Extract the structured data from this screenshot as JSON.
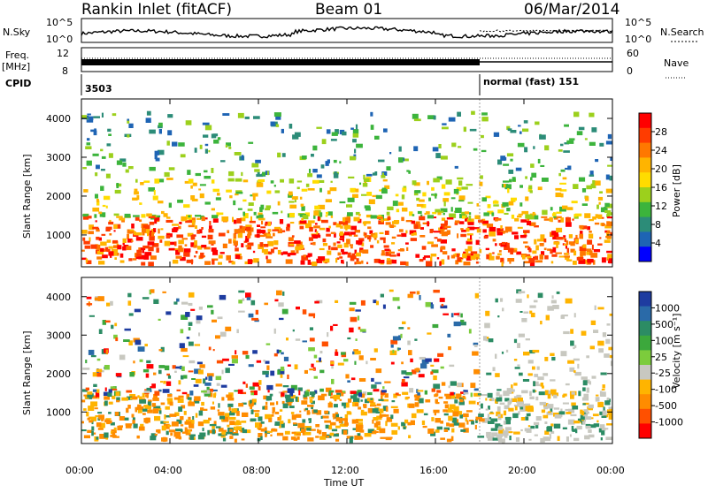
{
  "header": {
    "station": "Rankin Inlet (fitACF)",
    "beam": "Beam 01",
    "date": "06/Mar/2014"
  },
  "top_panels": {
    "nsky": {
      "label": "N.Sky",
      "ticks": [
        "10^5",
        "10^0"
      ]
    },
    "nsearch": {
      "label": "N.Search",
      "ticks": [
        "10^5",
        "10^0"
      ]
    },
    "freq": {
      "label_line1": "Freq.",
      "label_line2": "[MHz]",
      "ticks": [
        "12",
        "8"
      ]
    },
    "nave": {
      "label": "Nave",
      "ticks": [
        "60",
        "0"
      ]
    },
    "cpid": {
      "label": "CPID",
      "segments": [
        {
          "text": "3503"
        },
        {
          "text": "normal (fast) 151"
        }
      ]
    }
  },
  "power_panel": {
    "ylabel": "Slant Range [km]",
    "yticks": [
      "4000",
      "3000",
      "2000",
      "1000"
    ],
    "colorbar": {
      "label": "Power [dB]",
      "ticks": [
        "28",
        "24",
        "20",
        "16",
        "12",
        "8",
        "4"
      ],
      "colors": [
        "#ff0000",
        "#ff3c00",
        "#ff7800",
        "#ffb400",
        "#ffdc00",
        "#9cd01c",
        "#3cb43c",
        "#2c8c78",
        "#1e64b4",
        "#0000ff"
      ]
    }
  },
  "velocity_panel": {
    "ylabel": "Slant Range [km]",
    "yticks": [
      "4000",
      "3000",
      "2000",
      "1000"
    ],
    "colorbar": {
      "label": "Velocity [m s⁻¹]",
      "ticks": [
        "1000",
        "500",
        "100",
        "25",
        "-25",
        "-100",
        "-500",
        "-1000"
      ],
      "colors": [
        "#1e3ca0",
        "#2a6aa8",
        "#2c8c64",
        "#3ca83c",
        "#7ccc3c",
        "#c8c8c0",
        "#ffb400",
        "#ff8c00",
        "#ff5000",
        "#ff0000"
      ]
    }
  },
  "xaxis": {
    "label": "Time UT",
    "ticks": [
      "00:00",
      "04:00",
      "08:00",
      "12:00",
      "16:00",
      "20:00",
      "00:00"
    ]
  },
  "chart_data": {
    "type": "heatmap",
    "title": "Rankin Inlet (fitACF)",
    "xlabel": "Time UT",
    "ylabel": "Slant Range [km]",
    "x_range_hours": [
      0,
      24
    ],
    "y_range_km": [
      180,
      4500
    ],
    "mode_change_hour": 18,
    "power_scale_dB": [
      0,
      30
    ],
    "velocity_scale_ms": [
      -1000,
      1000
    ]
  }
}
